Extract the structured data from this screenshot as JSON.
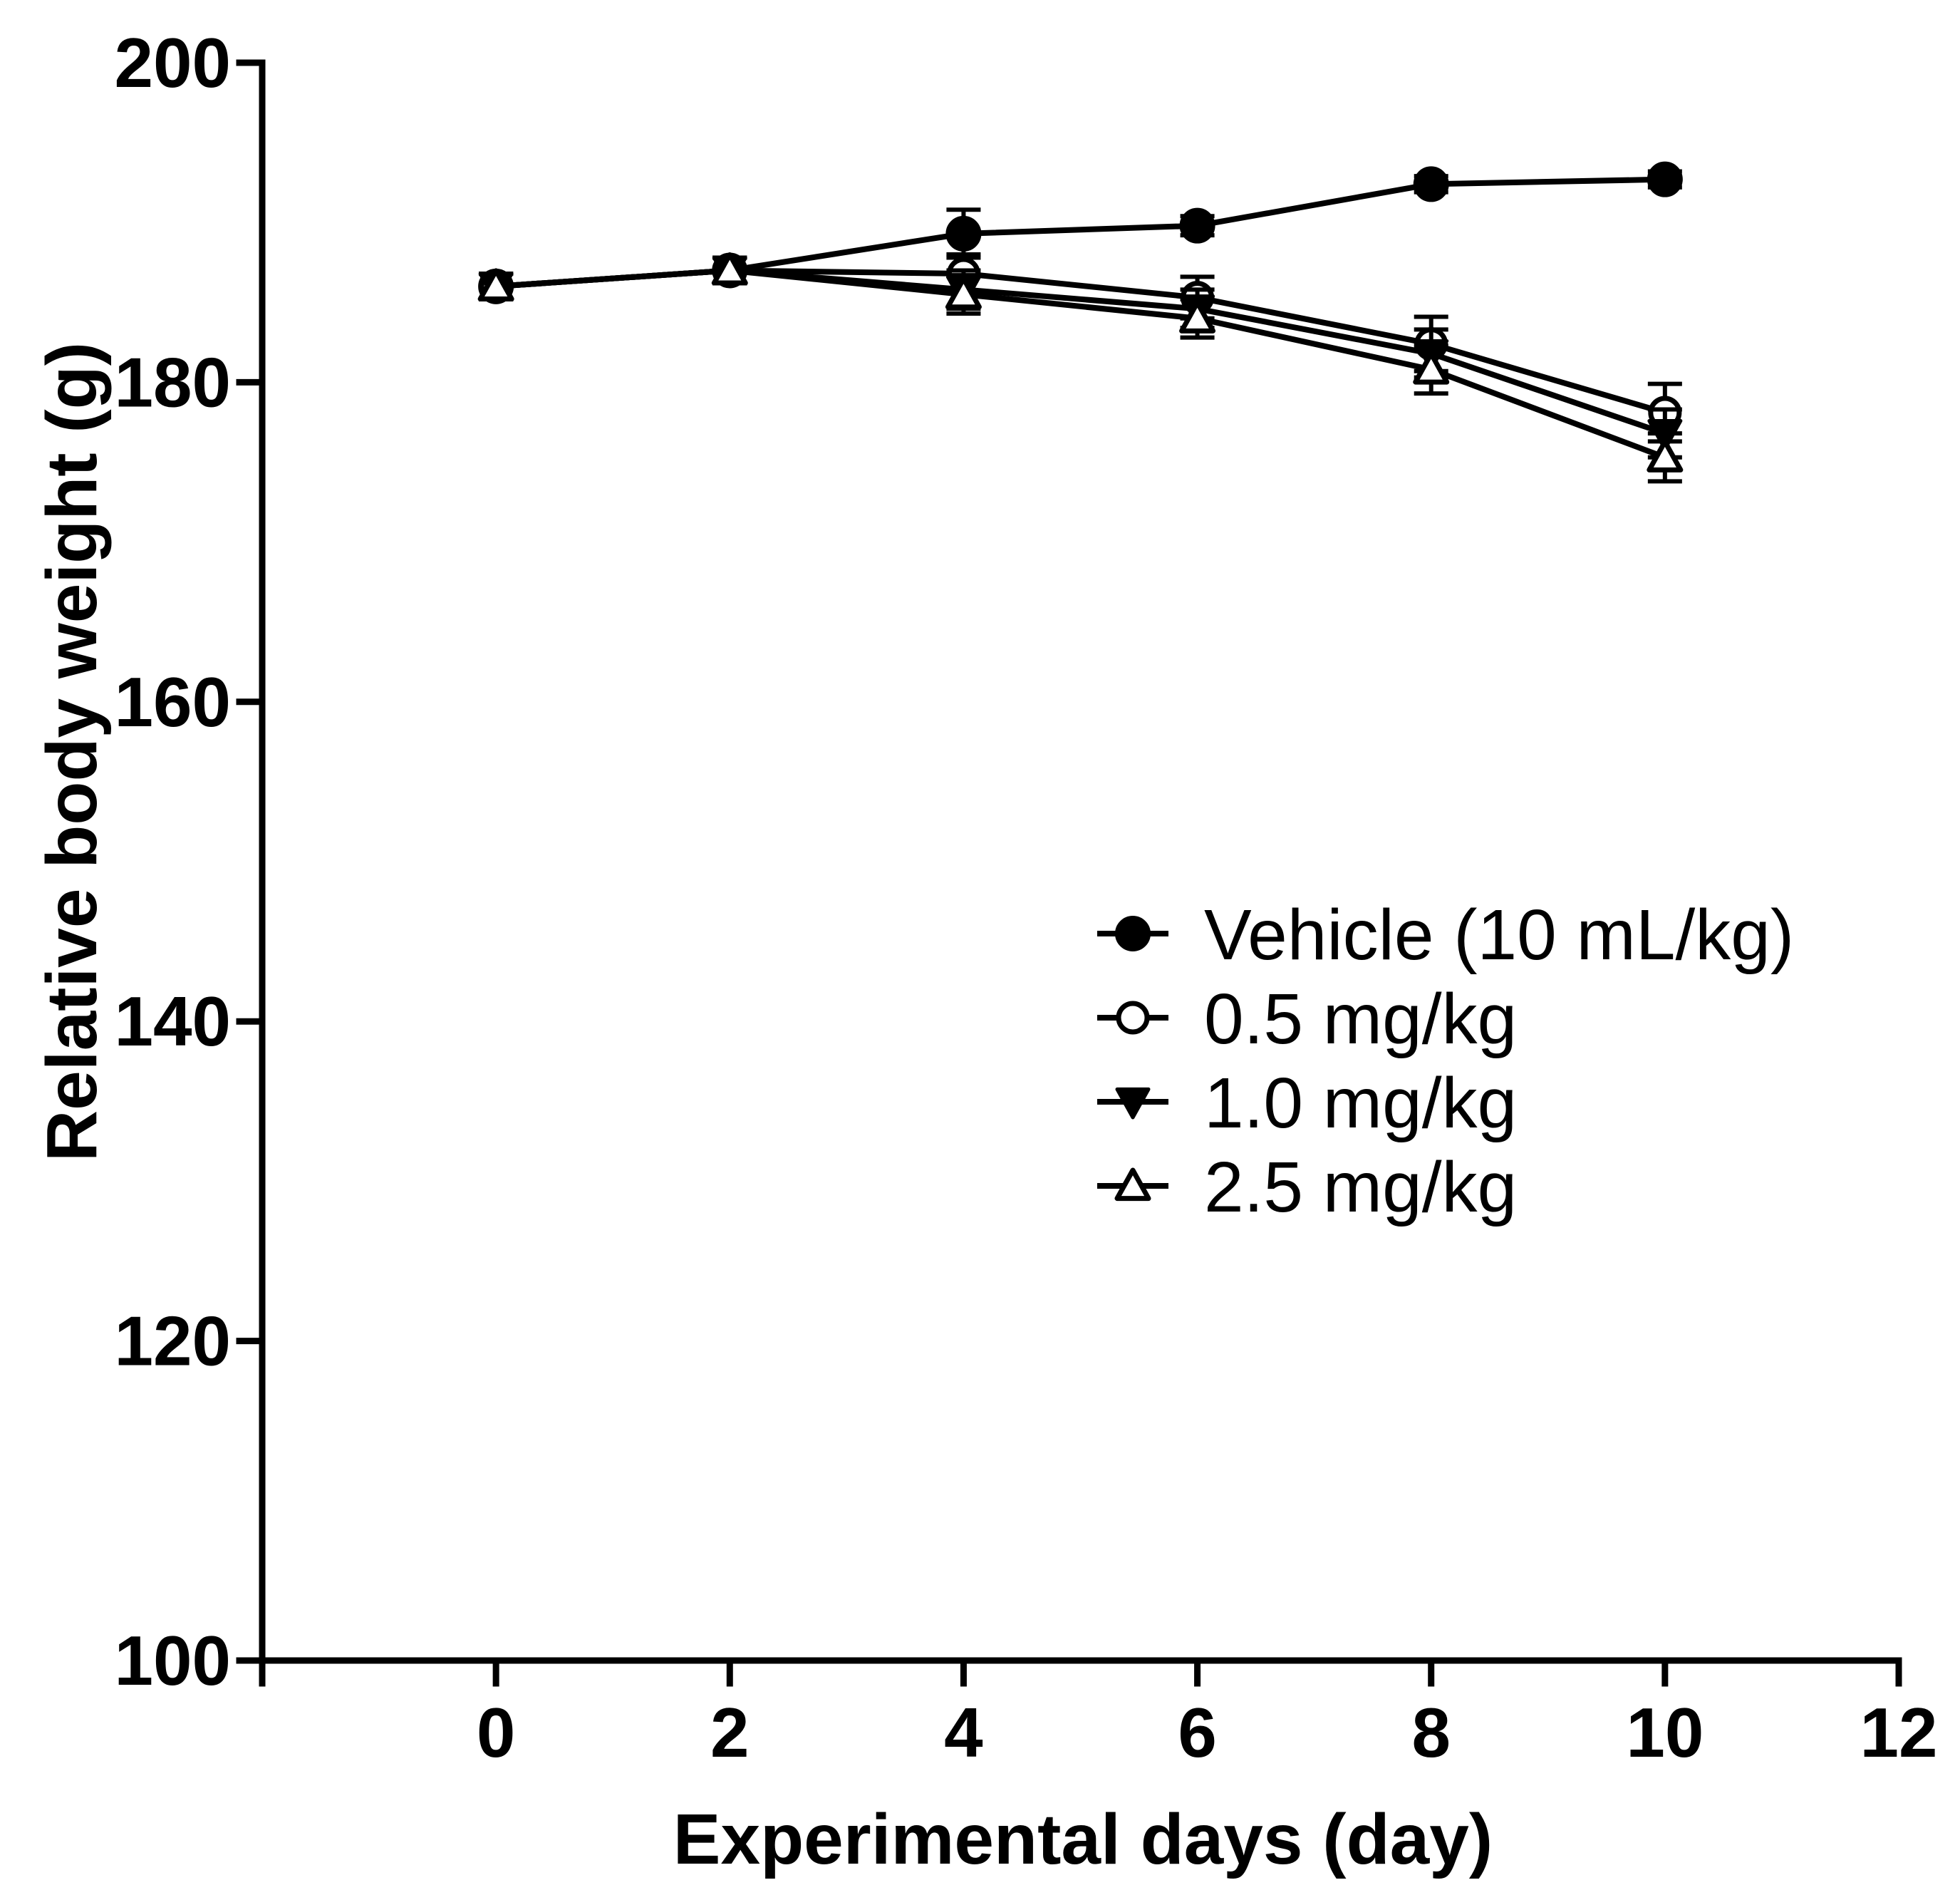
{
  "chart_data": {
    "type": "line",
    "title": "",
    "xlabel": "Experimental days (day)",
    "ylabel": "Relative body weight (g)",
    "xlim": [
      -2,
      12
    ],
    "ylim": [
      100,
      200
    ],
    "xticks": [
      0,
      2,
      4,
      6,
      8,
      10,
      12
    ],
    "yticks": [
      100,
      120,
      140,
      160,
      180,
      200
    ],
    "x": [
      0,
      2,
      4,
      6,
      8,
      10
    ],
    "legend_position": "center-right",
    "series": [
      {
        "name": "Vehicle (10 mL/kg)",
        "marker": "filled-circle",
        "values": [
          186,
          187,
          189.3,
          189.8,
          192.4,
          192.7
        ],
        "errors": [
          0.8,
          0.8,
          1.5,
          0.6,
          0.5,
          0.5
        ]
      },
      {
        "name": "0.5 mg/kg",
        "marker": "open-circle",
        "values": [
          186,
          187,
          186.8,
          185.3,
          182.4,
          178.1
        ],
        "errors": [
          0.8,
          0.8,
          1.2,
          1.3,
          1.7,
          1.8
        ]
      },
      {
        "name": "1.0 mg/kg",
        "marker": "filled-triangle-down",
        "values": [
          186,
          187,
          185.8,
          184.6,
          181.8,
          176.8
        ],
        "errors": [
          0.8,
          0.8,
          1.2,
          1.2,
          1.5,
          1.5
        ]
      },
      {
        "name": "2.5 mg/kg",
        "marker": "open-triangle-up",
        "values": [
          186,
          187,
          185.5,
          184,
          180.8,
          175.3
        ],
        "errors": [
          0.8,
          0.8,
          1.2,
          1.2,
          1.5,
          1.5
        ]
      }
    ]
  }
}
